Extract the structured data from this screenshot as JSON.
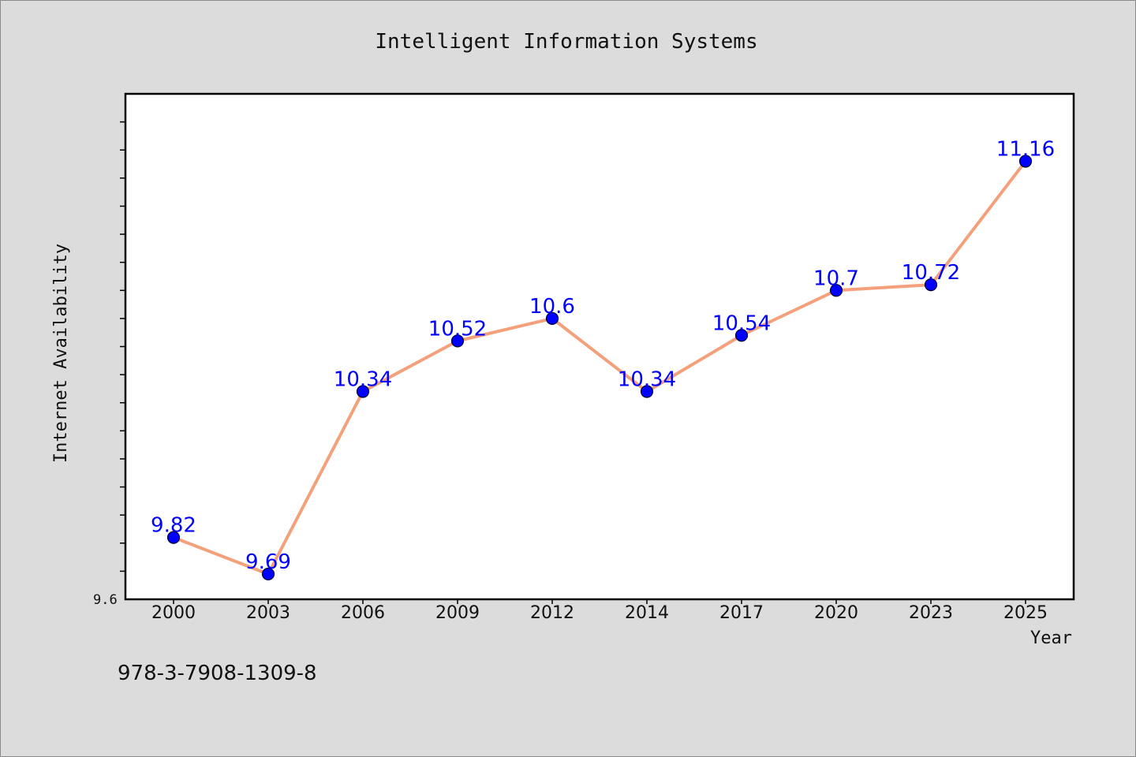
{
  "chart_data": {
    "type": "line",
    "title": "Intelligent Information Systems",
    "xlabel": "Year",
    "ylabel": "Internet Availability",
    "x": [
      "2000",
      "2003",
      "2006",
      "2009",
      "2012",
      "2014",
      "2017",
      "2020",
      "2023",
      "2025"
    ],
    "series": [
      {
        "values": [
          9.82,
          9.69,
          10.34,
          10.52,
          10.6,
          10.34,
          10.54,
          10.7,
          10.72,
          11.16
        ],
        "labels": [
          "9.82",
          "9.69",
          "10.34",
          "10.52",
          "10.6",
          "10.34",
          "10.54",
          "10.7",
          "10.72",
          "11.16"
        ]
      }
    ],
    "ylim": [
      9.6,
      11.4
    ],
    "ytick_labels": [
      "9.6"
    ],
    "grid": false,
    "colors": {
      "line": "#f4a07a",
      "marker": "#0000ff",
      "marker_edge": "#000033",
      "data_label": "#0000ff",
      "plot_background": "#ffffff",
      "figure_background": "#dcdcdc"
    }
  },
  "footer": {
    "isbn": "978-3-7908-1309-8"
  }
}
